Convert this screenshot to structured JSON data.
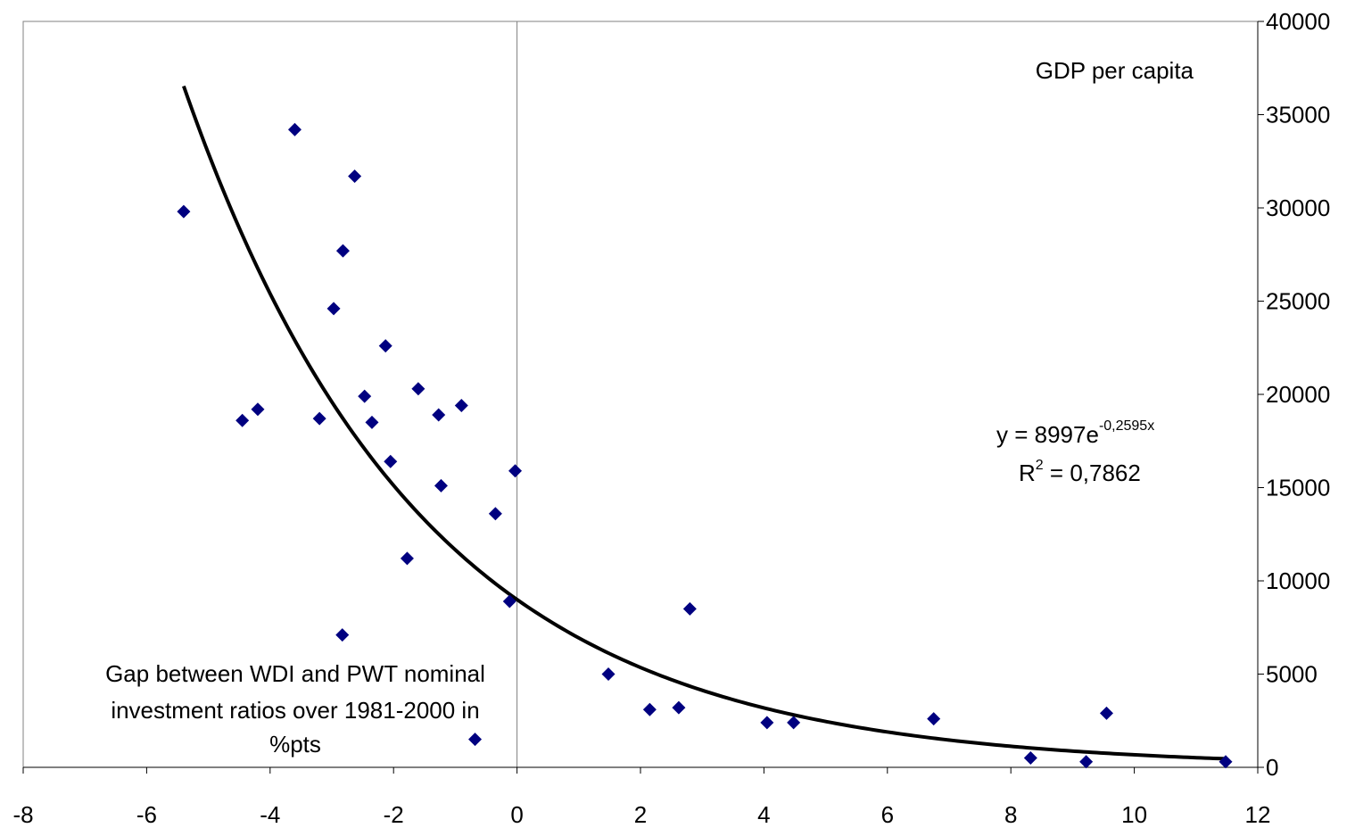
{
  "chart_data": {
    "type": "scatter",
    "title": "",
    "ylabel": "GDP per capita",
    "xlabel_lines": [
      "Gap between WDI and PWT nominal",
      "investment ratios over 1981-2000 in",
      "%pts"
    ],
    "xlim": [
      -8,
      12
    ],
    "ylim": [
      0,
      40000
    ],
    "x_ticks": [
      -8,
      -6,
      -4,
      -2,
      0,
      2,
      4,
      6,
      8,
      10,
      12
    ],
    "y_ticks": [
      0,
      5000,
      10000,
      15000,
      20000,
      25000,
      30000,
      35000,
      40000
    ],
    "x_tick_labels": [
      "-8",
      "-6",
      "-4",
      "-2",
      "0",
      "2",
      "4",
      "6",
      "8",
      "10",
      "12"
    ],
    "y_tick_labels": [
      "0",
      "5000",
      "10000",
      "15000",
      "20000",
      "25000",
      "30000",
      "35000",
      "40000"
    ],
    "y_axis_side": "right",
    "grid": false,
    "legend": "none",
    "marker": "diamond",
    "marker_color": "#000080",
    "trendline_color": "#000000",
    "series": [
      {
        "points": [
          [
            -5.4,
            29800
          ],
          [
            -4.45,
            18600
          ],
          [
            -4.2,
            19200
          ],
          [
            -3.6,
            34200
          ],
          [
            -3.2,
            18700
          ],
          [
            -2.97,
            24600
          ],
          [
            -2.82,
            27700
          ],
          [
            -2.83,
            7100
          ],
          [
            -2.63,
            31700
          ],
          [
            -2.47,
            19900
          ],
          [
            -2.35,
            18500
          ],
          [
            -2.13,
            22600
          ],
          [
            -2.05,
            16400
          ],
          [
            -1.78,
            11200
          ],
          [
            -1.6,
            20300
          ],
          [
            -1.27,
            18900
          ],
          [
            -1.23,
            15100
          ],
          [
            -0.9,
            19400
          ],
          [
            -0.68,
            1500
          ],
          [
            -0.35,
            13600
          ],
          [
            -0.12,
            8900
          ],
          [
            -0.03,
            15900
          ],
          [
            1.48,
            5000
          ],
          [
            2.15,
            3100
          ],
          [
            2.62,
            3200
          ],
          [
            2.8,
            8500
          ],
          [
            4.05,
            2400
          ],
          [
            4.48,
            2400
          ],
          [
            6.75,
            2600
          ],
          [
            8.32,
            500
          ],
          [
            9.22,
            300
          ],
          [
            9.55,
            2900
          ],
          [
            11.48,
            300
          ]
        ]
      }
    ],
    "trendline": {
      "type": "exponential",
      "a": 8997,
      "b": -0.2595,
      "x_range": [
        -5.4,
        11.5
      ]
    },
    "annotations": {
      "equation_base": "y = 8997e",
      "equation_exponent": "-0,2595x",
      "r2_prefix": "R",
      "r2_superscript": "2",
      "r2_value": " = 0,7862"
    }
  }
}
